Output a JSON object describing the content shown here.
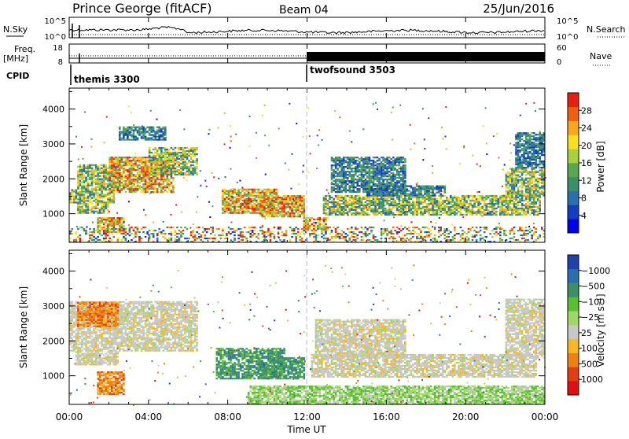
{
  "header": {
    "station": "Prince George (fitACF)",
    "beam": "Beam 04",
    "date": "25/Jun/2016"
  },
  "strip_labels": {
    "nsky": "N.Sky",
    "nsky_ticks": [
      "10^5",
      "10^0"
    ],
    "nsearch": "N.Search",
    "nsearch_ticks": [
      "10^5",
      "10^0"
    ],
    "freq_1": "Freq.",
    "freq_2": "[MHz]",
    "freq_ticks": [
      "18",
      "8"
    ],
    "nave": "Nave",
    "nave_ticks": [
      "60",
      "0"
    ],
    "cpid": "CPID"
  },
  "cpid_segments": [
    {
      "label": "themis 3300",
      "start_hour": 0
    },
    {
      "label": "twofsound 3503",
      "start_hour": 12
    }
  ],
  "chart_data": [
    {
      "type": "heatmap",
      "ylabel": "Slant Range [km]",
      "yticks": [
        1000,
        2000,
        3000,
        4000
      ],
      "ylim": [
        180,
        4600
      ],
      "xlim": [
        0,
        24
      ],
      "colorbar": {
        "label": "Power [dB]",
        "ticks": [
          "4",
          "8",
          "12",
          "16",
          "20",
          "24",
          "28"
        ],
        "colors": [
          "#0000ee",
          "#1040c0",
          "#2a6fb0",
          "#3d8f6a",
          "#58a850",
          "#a8d040",
          "#f8e020",
          "#f8a818",
          "#f06010",
          "#e82010"
        ]
      },
      "regions": [
        {
          "t0": 0.0,
          "t1": 2.3,
          "r0": 1300,
          "r1": 1700,
          "level": "mid"
        },
        {
          "t0": 0.4,
          "t1": 2.6,
          "r0": 1700,
          "r1": 2400,
          "level": "mid"
        },
        {
          "t0": 2.0,
          "t1": 5.2,
          "r0": 1600,
          "r1": 2600,
          "level": "high"
        },
        {
          "t0": 4.0,
          "t1": 6.4,
          "r0": 2100,
          "r1": 2900,
          "level": "mid"
        },
        {
          "t0": 2.5,
          "t1": 4.8,
          "r0": 3100,
          "r1": 3500,
          "level": "low"
        },
        {
          "t0": 0.4,
          "t1": 2.0,
          "r0": 1000,
          "r1": 1300,
          "level": "mid"
        },
        {
          "t0": 1.4,
          "t1": 2.8,
          "r0": 450,
          "r1": 900,
          "level": "high"
        },
        {
          "t0": 7.7,
          "t1": 10.4,
          "r0": 1000,
          "r1": 1700,
          "level": "high"
        },
        {
          "t0": 9.6,
          "t1": 11.8,
          "r0": 900,
          "r1": 1500,
          "level": "high"
        },
        {
          "t0": 11.8,
          "t1": 13.0,
          "r0": 500,
          "r1": 900,
          "level": "high"
        },
        {
          "t0": 12.8,
          "t1": 23.8,
          "r0": 950,
          "r1": 1500,
          "level": "mid"
        },
        {
          "t0": 15.0,
          "t1": 19.0,
          "r0": 1500,
          "r1": 1800,
          "level": "low"
        },
        {
          "t0": 13.2,
          "t1": 17.0,
          "r0": 1600,
          "r1": 2600,
          "level": "low"
        },
        {
          "t0": 22.0,
          "t1": 24.0,
          "r0": 1500,
          "r1": 2300,
          "level": "mid"
        },
        {
          "t0": 22.5,
          "t1": 24.0,
          "r0": 2300,
          "r1": 3300,
          "level": "low"
        },
        {
          "t0": 0.0,
          "t1": 24.0,
          "r0": 180,
          "r1": 600,
          "level": "noise"
        }
      ]
    },
    {
      "type": "heatmap",
      "ylabel": "Slant Range [km]",
      "xlabel": "Time UT",
      "xticks": [
        "00:00",
        "04:00",
        "08:00",
        "12:00",
        "16:00",
        "20:00",
        "00:00"
      ],
      "yticks": [
        1000,
        2000,
        3000,
        4000
      ],
      "ylim": [
        180,
        4600
      ],
      "xlim": [
        0,
        24
      ],
      "colorbar": {
        "label": "Velocity [m s⁻¹]",
        "ticks": [
          "1000",
          "500",
          "100",
          "25",
          "−25",
          "−100",
          "−500",
          "−1000"
        ],
        "colors": [
          "#2040b0",
          "#2a6fb0",
          "#3d8f6a",
          "#58c030",
          "#a0d868",
          "#c8c8c8",
          "#f8b820",
          "#f08010",
          "#e04010",
          "#e01010"
        ]
      },
      "regions": [
        {
          "t0": 0.0,
          "t1": 6.4,
          "r0": 1700,
          "r1": 3100,
          "level": "grey"
        },
        {
          "t0": 0.3,
          "t1": 2.5,
          "r0": 1300,
          "r1": 1700,
          "level": "grey"
        },
        {
          "t0": 0.4,
          "t1": 2.5,
          "r0": 2400,
          "r1": 3100,
          "level": "orange"
        },
        {
          "t0": 1.4,
          "t1": 2.8,
          "r0": 450,
          "r1": 1100,
          "level": "orange"
        },
        {
          "t0": 7.4,
          "t1": 10.8,
          "r0": 900,
          "r1": 1800,
          "level": "green"
        },
        {
          "t0": 10.0,
          "t1": 11.8,
          "r0": 900,
          "r1": 1500,
          "level": "green"
        },
        {
          "t0": 12.2,
          "t1": 23.6,
          "r0": 950,
          "r1": 1600,
          "level": "grey"
        },
        {
          "t0": 12.4,
          "t1": 17.0,
          "r0": 1500,
          "r1": 2600,
          "level": "grey"
        },
        {
          "t0": 9.0,
          "t1": 24.0,
          "r0": 180,
          "r1": 700,
          "level": "lightgreen"
        },
        {
          "t0": 22.0,
          "t1": 24.0,
          "r0": 1500,
          "r1": 3200,
          "level": "grey"
        }
      ]
    }
  ]
}
